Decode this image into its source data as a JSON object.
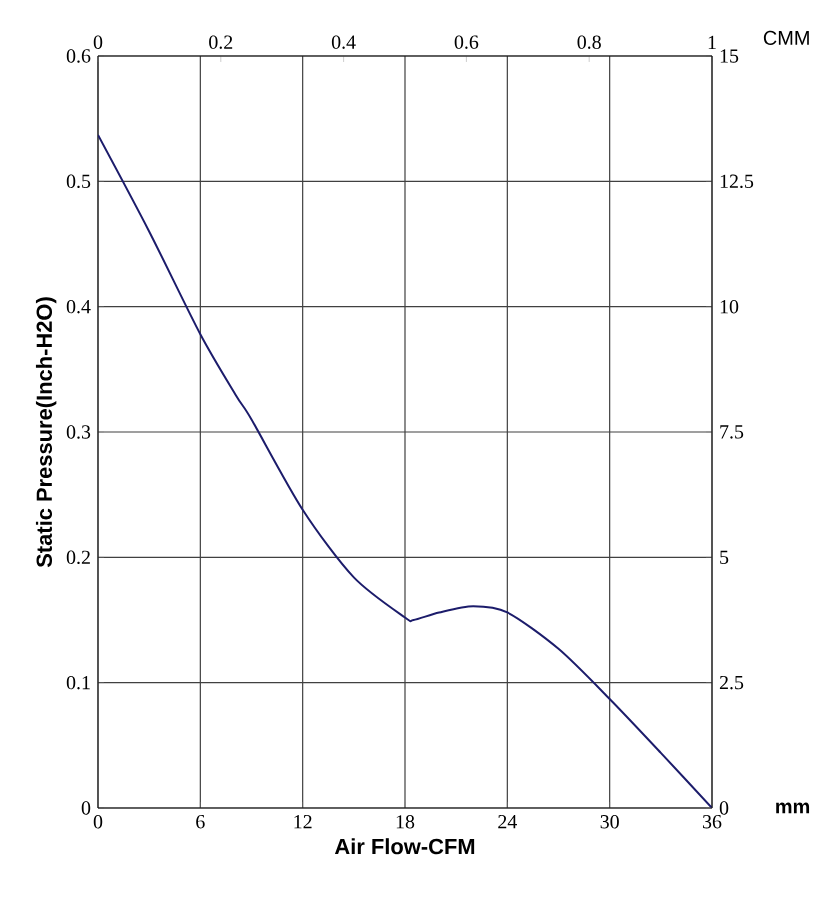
{
  "chart_data": {
    "type": "line",
    "xlabel": "Air Flow-CFM",
    "ylabel": "Static Pressure(Inch-H2O)",
    "x2label": "CMM",
    "y2label": "mm",
    "x": [
      0,
      3,
      6,
      8.1,
      9,
      12,
      15,
      18,
      18.5,
      20,
      22,
      24,
      27,
      30,
      33,
      36
    ],
    "series": [
      {
        "color": "#1c1c6b",
        "values": [
          0.537,
          0.46,
          0.378,
          0.329,
          0.31,
          0.238,
          0.184,
          0.152,
          0.15,
          0.156,
          0.161,
          0.156,
          0.127,
          0.087,
          0.044,
          0
        ]
      }
    ],
    "xlim": [
      0,
      36
    ],
    "xticks": [
      0,
      6,
      12,
      18,
      24,
      30,
      36
    ],
    "ylim": [
      0,
      0.6
    ],
    "yticks": [
      0,
      0.1,
      0.2,
      0.3,
      0.4,
      0.5,
      0.6
    ],
    "x2lim": [
      0,
      1
    ],
    "x2ticks": [
      0,
      0.2,
      0.4,
      0.6,
      0.8,
      1
    ],
    "y2lim": [
      0,
      15
    ],
    "y2ticks": [
      0,
      2.5,
      5,
      7.5,
      10,
      12.5,
      15
    ],
    "grid": true,
    "line_style": "solid"
  }
}
